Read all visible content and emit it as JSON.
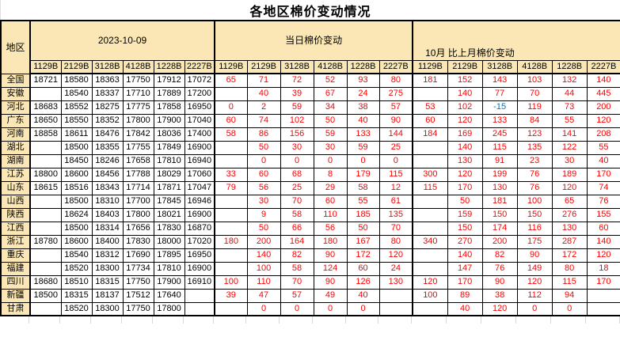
{
  "title": "各地区棉价变动情况",
  "table": {
    "region_header": "地区",
    "sections": [
      {
        "label": "2023-10-09"
      },
      {
        "label": "当日棉价变动"
      },
      {
        "label": "10月 比上月棉价变动"
      }
    ],
    "grade_columns": [
      "1129B",
      "2129B",
      "3128B",
      "4128B",
      "1228B",
      "2227B"
    ],
    "colors": {
      "header_bg": "#FBE7B5",
      "price_text": "#000000",
      "change_text": "#FF0000",
      "negative_text": "#0070C0",
      "border": "#000000"
    },
    "rows": [
      {
        "region": "全国",
        "prices": [
          "18721",
          "18580",
          "18363",
          "17750",
          "17912",
          "17072"
        ],
        "daily": [
          "65",
          "71",
          "72",
          "52",
          "93",
          "80"
        ],
        "monthly": [
          "181",
          "152",
          "143",
          "103",
          "132",
          "140"
        ]
      },
      {
        "region": "安徽",
        "prices": [
          "",
          "18540",
          "18337",
          "17710",
          "17889",
          "17200"
        ],
        "daily": [
          "",
          "40",
          "39",
          "67",
          "24",
          "275"
        ],
        "monthly": [
          "",
          "140",
          "77",
          "70",
          "44",
          "445"
        ]
      },
      {
        "region": "河北",
        "prices": [
          "18683",
          "18552",
          "18275",
          "17775",
          "17858",
          "16950"
        ],
        "daily": [
          "0",
          "2",
          "59",
          "34",
          "38",
          "57"
        ],
        "monthly": [
          "53",
          "102",
          "-15",
          "119",
          "73",
          "200"
        ]
      },
      {
        "region": "广东",
        "prices": [
          "18650",
          "18550",
          "18352",
          "17800",
          "17900",
          "17040"
        ],
        "daily": [
          "60",
          "74",
          "102",
          "50",
          "40",
          "90"
        ],
        "monthly": [
          "60",
          "120",
          "133",
          "84",
          "55",
          "120"
        ]
      },
      {
        "region": "河南",
        "prices": [
          "18858",
          "18611",
          "18476",
          "17842",
          "18036",
          "17400"
        ],
        "daily": [
          "58",
          "86",
          "156",
          "59",
          "133",
          "144"
        ],
        "monthly": [
          "184",
          "169",
          "245",
          "123",
          "141",
          "208"
        ]
      },
      {
        "region": "湖北",
        "prices": [
          "",
          "18500",
          "18355",
          "17755",
          "17849",
          "16900"
        ],
        "daily": [
          "",
          "50",
          "30",
          "30",
          "59",
          "25"
        ],
        "monthly": [
          "",
          "140",
          "115",
          "135",
          "122",
          "55"
        ]
      },
      {
        "region": "湖南",
        "prices": [
          "",
          "18450",
          "18246",
          "17658",
          "17810",
          "16940"
        ],
        "daily": [
          "",
          "0",
          "0",
          "0",
          "0",
          "0"
        ],
        "monthly": [
          "",
          "130",
          "91",
          "23",
          "30",
          "40"
        ]
      },
      {
        "region": "江苏",
        "prices": [
          "18800",
          "18600",
          "18456",
          "17788",
          "18029",
          "17060"
        ],
        "daily": [
          "33",
          "60",
          "68",
          "8",
          "179",
          "115"
        ],
        "monthly": [
          "300",
          "120",
          "199",
          "76",
          "189",
          "170"
        ]
      },
      {
        "region": "山东",
        "prices": [
          "18615",
          "18516",
          "18343",
          "17714",
          "17871",
          "17047"
        ],
        "daily": [
          "79",
          "56",
          "25",
          "29",
          "58",
          "12"
        ],
        "monthly": [
          "115",
          "170",
          "130",
          "76",
          "120",
          "74"
        ]
      },
      {
        "region": "山西",
        "prices": [
          "",
          "18500",
          "18310",
          "17700",
          "17845",
          "16946"
        ],
        "daily": [
          "",
          "30",
          "70",
          "60",
          "55",
          "61"
        ],
        "monthly": [
          "",
          "50",
          "181",
          "100",
          "65",
          "76"
        ]
      },
      {
        "region": "陕西",
        "prices": [
          "",
          "18624",
          "18403",
          "17800",
          "18021",
          "16900"
        ],
        "daily": [
          "",
          "9",
          "58",
          "110",
          "185",
          "135"
        ],
        "monthly": [
          "",
          "159",
          "150",
          "150",
          "276",
          "155"
        ]
      },
      {
        "region": "江西",
        "prices": [
          "",
          "18500",
          "18314",
          "17656",
          "17830",
          "16870"
        ],
        "daily": [
          "",
          "50",
          "66",
          "56",
          "50",
          "70"
        ],
        "monthly": [
          "",
          "150",
          "174",
          "116",
          "130",
          "60"
        ]
      },
      {
        "region": "浙江",
        "prices": [
          "18780",
          "18600",
          "18400",
          "17830",
          "18000",
          "17020"
        ],
        "daily": [
          "180",
          "200",
          "164",
          "180",
          "167",
          "80"
        ],
        "monthly": [
          "340",
          "270",
          "200",
          "175",
          "287",
          "140"
        ]
      },
      {
        "region": "重庆",
        "prices": [
          "",
          "18540",
          "18312",
          "17690",
          "17895",
          "16950"
        ],
        "daily": [
          "",
          "140",
          "82",
          "90",
          "172",
          "120"
        ],
        "monthly": [
          "",
          "140",
          "82",
          "90",
          "172",
          "120"
        ]
      },
      {
        "region": "福建",
        "prices": [
          "",
          "18520",
          "18300",
          "17734",
          "17810",
          "16900"
        ],
        "daily": [
          "",
          "100",
          "58",
          "124",
          "60",
          "24"
        ],
        "monthly": [
          "",
          "147",
          "76",
          "149",
          "80",
          "18"
        ]
      },
      {
        "region": "四川",
        "prices": [
          "18680",
          "18510",
          "18315",
          "17750",
          "17900",
          "16910"
        ],
        "daily": [
          "100",
          "110",
          "70",
          "90",
          "126",
          "130"
        ],
        "monthly": [
          "120",
          "170",
          "90",
          "120",
          "115",
          "170"
        ]
      },
      {
        "region": "新疆",
        "prices": [
          "18500",
          "18315",
          "18137",
          "17512",
          "17640",
          ""
        ],
        "daily": [
          "39",
          "47",
          "57",
          "49",
          "40",
          ""
        ],
        "monthly": [
          "100",
          "89",
          "38",
          "112",
          "94",
          ""
        ]
      },
      {
        "region": "甘肃",
        "prices": [
          "",
          "18520",
          "18300",
          "17750",
          "17800",
          ""
        ],
        "daily": [
          "",
          "0",
          "0",
          "0",
          "0",
          ""
        ],
        "monthly": [
          "",
          "40",
          "120",
          "0",
          "0",
          ""
        ]
      }
    ]
  }
}
